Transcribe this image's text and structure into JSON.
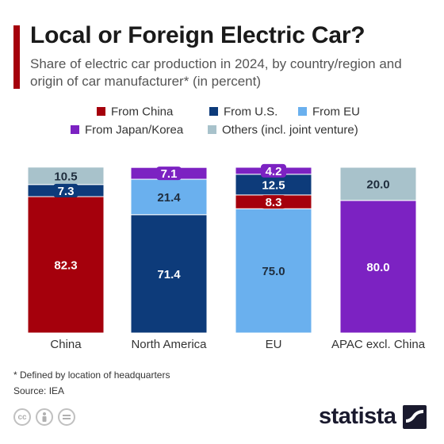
{
  "header": {
    "title": "Local or Foreign Electric Car?",
    "subtitle": "Share of electric car production in 2024, by country/region and origin of car manufacturer* (in percent)"
  },
  "colors": {
    "accent": "#a5000c",
    "china": "#a5000c",
    "us": "#0d3b7a",
    "eu": "#6ab0ee",
    "japan_korea": "#7c22c2",
    "others": "#a8c2cb"
  },
  "chart_data": {
    "type": "bar",
    "stacked": true,
    "title": "Local or Foreign Electric Car?",
    "subtitle": "Share of electric car production in 2024, by country/region and origin of car manufacturer* (in percent)",
    "categories": [
      "China",
      "North America",
      "EU",
      "APAC excl. China"
    ],
    "legend_position": "top",
    "ylim": [
      0,
      100
    ],
    "series": [
      {
        "name": "From China",
        "color": "#a5000c",
        "values": [
          82.3,
          0,
          8.3,
          0
        ]
      },
      {
        "name": "From U.S.",
        "color": "#0d3b7a",
        "values": [
          7.3,
          71.4,
          12.5,
          0
        ]
      },
      {
        "name": "From EU",
        "color": "#6ab0ee",
        "values": [
          0,
          21.4,
          75.0,
          0
        ]
      },
      {
        "name": "From Japan/Korea",
        "color": "#7c22c2",
        "values": [
          0,
          7.1,
          4.2,
          80.0
        ]
      },
      {
        "name": "Others (incl. joint venture)",
        "color": "#a8c2cb",
        "values": [
          10.5,
          0,
          0,
          20.0
        ]
      }
    ],
    "stack_order": [
      [
        "From China",
        "From U.S.",
        "Others (incl. joint venture)"
      ],
      [
        "From U.S.",
        "From EU",
        "From Japan/Korea"
      ],
      [
        "From EU",
        "From China",
        "From U.S.",
        "From Japan/Korea"
      ],
      [
        "From Japan/Korea",
        "Others (incl. joint venture)"
      ]
    ],
    "value_labels": [
      [
        "82.3",
        "7.3",
        "10.5"
      ],
      [
        "71.4",
        "21.4",
        "7.1"
      ],
      [
        "75.0",
        "8.3",
        "12.5",
        "4.2"
      ],
      [
        "80.0",
        "20.0"
      ]
    ]
  },
  "footer": {
    "footnote": "* Defined by location of headquarters",
    "source": "Source: IEA",
    "brand": "statista"
  },
  "icons": [
    "cc-icon",
    "by-icon",
    "nd-icon",
    "statista-logo-icon"
  ]
}
